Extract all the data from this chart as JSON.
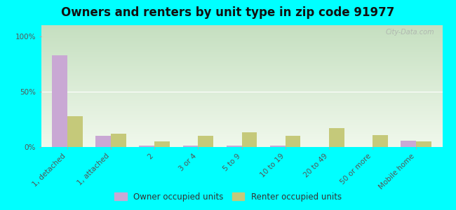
{
  "title": "Owners and renters by unit type in zip code 91977",
  "categories": [
    "1, detached",
    "1, attached",
    "2",
    "3 or 4",
    "5 to 9",
    "10 to 19",
    "20 to 49",
    "50 or more",
    "Mobile home"
  ],
  "owner_values": [
    83,
    10,
    1,
    1,
    1,
    1,
    0,
    0,
    6
  ],
  "renter_values": [
    28,
    12,
    5,
    10,
    13,
    10,
    17,
    11,
    5
  ],
  "owner_color": "#c9a8d4",
  "renter_color": "#c5c97a",
  "background_color": "#00ffff",
  "grad_top": "#c5dfc0",
  "grad_bottom": "#f0f8ec",
  "ylabel_ticks": [
    "0%",
    "50%",
    "100%"
  ],
  "ytick_vals": [
    0,
    50,
    100
  ],
  "ylim": [
    0,
    110
  ],
  "bar_width": 0.35,
  "title_fontsize": 12,
  "tick_fontsize": 7.5,
  "legend_fontsize": 8.5,
  "watermark": "City-Data.com"
}
